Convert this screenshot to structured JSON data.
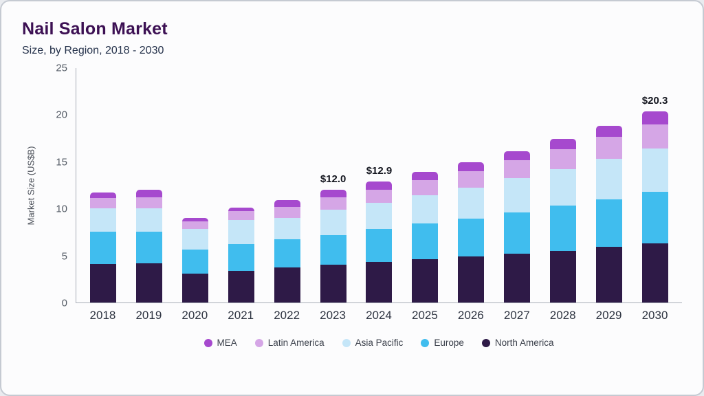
{
  "header": {
    "title": "Nail Salon Market",
    "subtitle": "Size, by Region, 2018 - 2030"
  },
  "chart_data": {
    "type": "bar",
    "stacked": true,
    "title": "Nail Salon Market Size, by Region, 2018 - 2030",
    "ylabel": "Market Size (US$B)",
    "ylim": [
      0,
      25
    ],
    "yticks": [
      0,
      5,
      10,
      15,
      20,
      25
    ],
    "grid": false,
    "legend_position": "bottom",
    "categories": [
      "2018",
      "2019",
      "2020",
      "2021",
      "2022",
      "2023",
      "2024",
      "2025",
      "2026",
      "2027",
      "2028",
      "2029",
      "2030"
    ],
    "series": [
      {
        "name": "North America",
        "color": "#2e1a47",
        "values": [
          4.1,
          4.2,
          3.1,
          3.4,
          3.7,
          4.0,
          4.3,
          4.6,
          4.9,
          5.2,
          5.5,
          5.9,
          6.3
        ]
      },
      {
        "name": "Europe",
        "color": "#40bdee",
        "values": [
          3.4,
          3.3,
          2.5,
          2.8,
          3.0,
          3.2,
          3.5,
          3.8,
          4.0,
          4.4,
          4.8,
          5.1,
          5.5
        ]
      },
      {
        "name": "Asia Pacific",
        "color": "#c5e6f8",
        "values": [
          2.5,
          2.5,
          2.2,
          2.6,
          2.3,
          2.7,
          2.8,
          3.0,
          3.3,
          3.6,
          3.9,
          4.3,
          4.6
        ]
      },
      {
        "name": "Latin America",
        "color": "#d5a6e6",
        "values": [
          1.1,
          1.2,
          0.8,
          0.9,
          1.2,
          1.3,
          1.4,
          1.6,
          1.8,
          1.9,
          2.1,
          2.3,
          2.5
        ]
      },
      {
        "name": "MEA",
        "color": "#a649ce",
        "values": [
          0.6,
          0.8,
          0.4,
          0.4,
          0.7,
          0.8,
          0.9,
          0.9,
          0.9,
          1.0,
          1.1,
          1.2,
          1.4
        ]
      }
    ],
    "totals": [
      11.7,
      12.0,
      9.0,
      10.1,
      10.9,
      12.0,
      12.9,
      13.9,
      14.9,
      16.1,
      17.4,
      18.8,
      20.3
    ],
    "annotations": {
      "2023": "$12.0",
      "2024": "$12.9",
      "2030": "$20.3"
    },
    "legend_order": [
      "MEA",
      "Latin America",
      "Asia Pacific",
      "Europe",
      "North America"
    ]
  }
}
